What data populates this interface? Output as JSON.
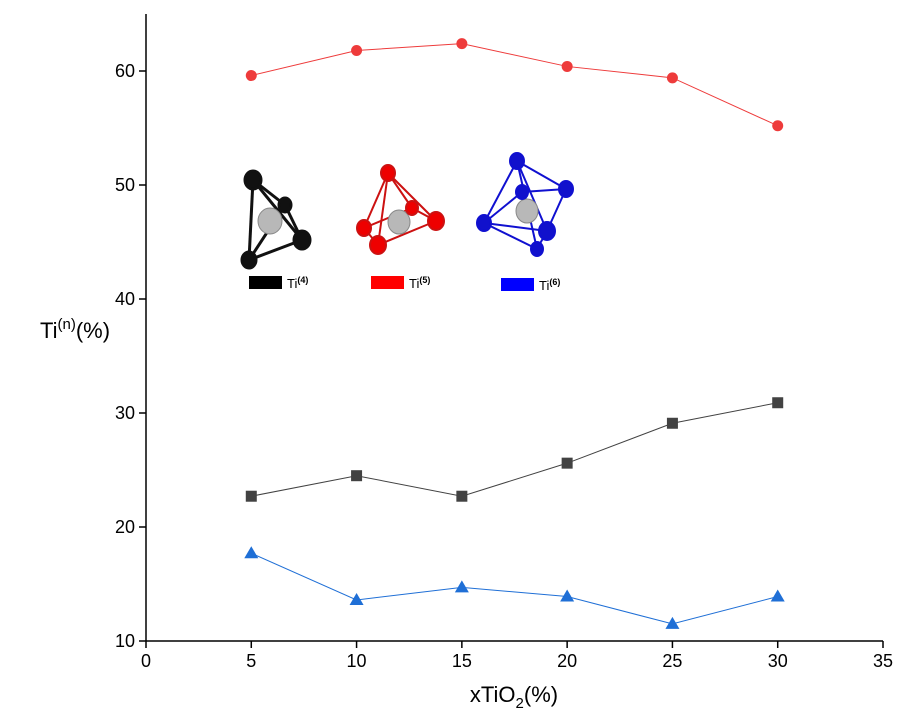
{
  "chart_data": {
    "type": "line",
    "x_label": [
      "xTiO",
      "2",
      "(%)"
    ],
    "y_label": [
      "Ti",
      "(n)",
      "(%)"
    ],
    "xlim": [
      0,
      35
    ],
    "xticks": [
      0,
      5,
      10,
      15,
      20,
      25,
      30,
      35
    ],
    "ylim": [
      10,
      65
    ],
    "yticks": [
      10,
      20,
      30,
      40,
      50,
      60
    ],
    "x": [
      5,
      10,
      15,
      20,
      25,
      30
    ],
    "series": [
      {
        "name": "Ti",
        "superscript": "(4)",
        "color": "#424242",
        "marker": "square",
        "legend_color": "#000000",
        "values": [
          22.7,
          24.5,
          22.7,
          25.6,
          29.1,
          30.9
        ]
      },
      {
        "name": "Ti",
        "superscript": "(5)",
        "color": "#ee3b3b",
        "marker": "circle",
        "legend_color": "#ff0000",
        "values": [
          59.6,
          61.8,
          62.4,
          60.4,
          59.4,
          55.2
        ]
      },
      {
        "name": "Ti",
        "superscript": "(6)",
        "color": "#1f6fd6",
        "marker": "triangle",
        "legend_color": "#0000ff",
        "values": [
          17.7,
          13.6,
          14.7,
          13.9,
          11.5,
          13.9
        ]
      }
    ]
  }
}
